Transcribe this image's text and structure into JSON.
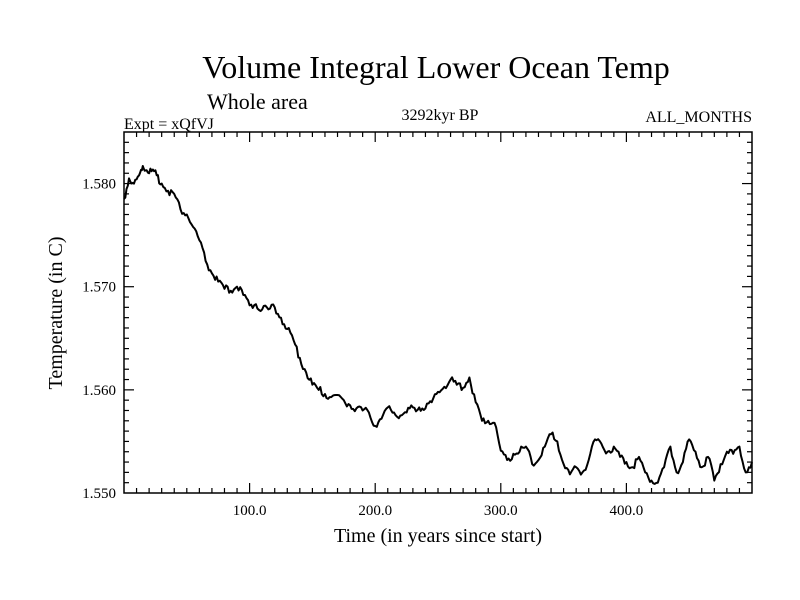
{
  "chart_data": {
    "type": "line",
    "title": "Volume Integral Lower Ocean Temp",
    "subtitle": "Whole area",
    "annotations": {
      "left": "Expt = xQfVJ",
      "center": "3292kyr BP",
      "right": "ALL_MONTHS"
    },
    "xlabel": "Time (in years since start)",
    "ylabel": "Temperature (in C)",
    "xlim": [
      0,
      500
    ],
    "ylim": [
      1.55,
      1.585
    ],
    "x_ticks": [
      100,
      200,
      300,
      400
    ],
    "x_tick_labels": [
      "100.0",
      "200.0",
      "300.0",
      "400.0"
    ],
    "y_ticks": [
      1.55,
      1.56,
      1.57,
      1.58
    ],
    "y_tick_labels": [
      "1.550",
      "1.560",
      "1.570",
      "1.580"
    ],
    "grid": false,
    "series": [
      {
        "name": "Volume Integral Lower Ocean Temp",
        "x": [
          0,
          4,
          8,
          12,
          15,
          18,
          22,
          26,
          30,
          35,
          40,
          45,
          50,
          55,
          60,
          65,
          70,
          75,
          80,
          85,
          90,
          95,
          100,
          105,
          110,
          115,
          120,
          125,
          130,
          135,
          140,
          145,
          150,
          155,
          160,
          165,
          170,
          175,
          180,
          185,
          190,
          195,
          200,
          205,
          210,
          215,
          220,
          225,
          230,
          235,
          240,
          245,
          250,
          255,
          260,
          265,
          270,
          275,
          280,
          285,
          290,
          295,
          300,
          305,
          310,
          315,
          320,
          325,
          330,
          335,
          340,
          345,
          350,
          355,
          360,
          365,
          370,
          375,
          380,
          385,
          390,
          395,
          400,
          405,
          410,
          415,
          420,
          425,
          430,
          435,
          440,
          445,
          450,
          455,
          460,
          465,
          470,
          475,
          480,
          485,
          490,
          495,
          500
        ],
        "values": [
          1.5785,
          1.5805,
          1.58,
          1.5808,
          1.5817,
          1.5813,
          1.5812,
          1.5808,
          1.58,
          1.5793,
          1.579,
          1.5775,
          1.577,
          1.5758,
          1.5745,
          1.5725,
          1.5713,
          1.5705,
          1.5698,
          1.5696,
          1.57,
          1.5692,
          1.5682,
          1.5683,
          1.5678,
          1.5678,
          1.568,
          1.567,
          1.5659,
          1.5648,
          1.5631,
          1.5617,
          1.5605,
          1.56,
          1.5596,
          1.5593,
          1.5595,
          1.559,
          1.5585,
          1.5582,
          1.558,
          1.5578,
          1.5565,
          1.5572,
          1.5583,
          1.5578,
          1.5575,
          1.5578,
          1.5583,
          1.5583,
          1.5582,
          1.5588,
          1.5598,
          1.5603,
          1.561,
          1.5605,
          1.5602,
          1.5612,
          1.5588,
          1.557,
          1.557,
          1.5568,
          1.5541,
          1.5532,
          1.5538,
          1.554,
          1.5545,
          1.5528,
          1.5532,
          1.5545,
          1.5557,
          1.555,
          1.5528,
          1.5518,
          1.5525,
          1.552,
          1.5532,
          1.5552,
          1.5548,
          1.554,
          1.5545,
          1.5535,
          1.553,
          1.5525,
          1.5535,
          1.552,
          1.5512,
          1.551,
          1.5525,
          1.5545,
          1.552,
          1.553,
          1.5552,
          1.554,
          1.5525,
          1.5535,
          1.5512,
          1.5528,
          1.554,
          1.5538,
          1.5545,
          1.552,
          1.553
        ]
      }
    ]
  }
}
